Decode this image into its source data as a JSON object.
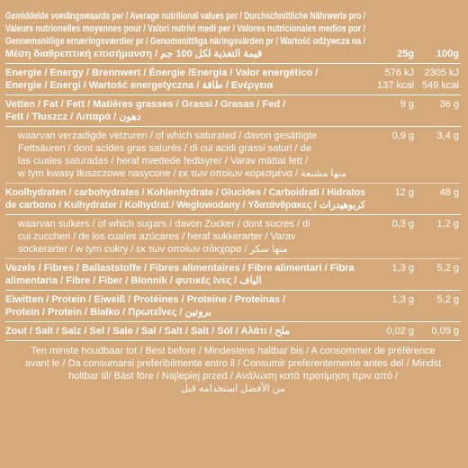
{
  "header": {
    "lines": [
      "Gemiddelde voedingswaarde per / Average nutritional values per / Durchschnittliche Nährwerte pro /",
      "Valeurs nutrionelles moyennes pour / Valori nutrivi medi per / Valores nutricionales medios por /",
      "Gennemsnitlige ernæringsværdier pr / Genomsnittliga näringsvärden pr / Wartość odżywcza na /",
      "Μέση διαθρεπτική επισήμανση / قيمة التغذية لكل 100 جم"
    ],
    "col_25": "25g",
    "col_100": "100g"
  },
  "nutrients": [
    {
      "label": [
        "Energie / Energy / Brennwert / Énergie  /Energia / Valor energético /",
        "Energie / Energi / Wartość energetyczna / طاقة / Ενέργεια"
      ],
      "per_25": [
        "576 kJ",
        "137 kcal"
      ],
      "per_100": [
        "2305 kJ",
        "549 kcal"
      ],
      "sub_rows": []
    },
    {
      "label": [
        "Vetten / Fat / Fett / Matières grasses / Grassi / Grasas / Fed /",
        "Fett / Tłuszcz / Λιπαρά / دهون"
      ],
      "per_25": [
        "9 g"
      ],
      "per_100": [
        "36 g"
      ],
      "sub_rows": [
        {
          "label": [
            "waarvan verzadigde vetzuren / of which saturated / davon gesättigte",
            "Fettsäuren / dont acides gras saturés / di cui acidi grassi saturi / de",
            "las cuales saturadas / heraf mættede fedtsyrer / Varav mättat fett /",
            "w tym kwasy tłuszczowe nasycone / εκ των οποίων κορεσμένα / منها مشبعة"
          ],
          "per_25": [
            "0,9 g"
          ],
          "per_100": [
            "3,4 g"
          ]
        }
      ]
    },
    {
      "label": [
        "Koolhydraten / carbohydrates / Kohlenhydrate / Glucides / Carboidrati / Hidratos",
        "de carbono / Kulhydrater / Kolhydrat / Weglowodany / Υδατάνθρακες / كربوهيدرات"
      ],
      "per_25": [
        "12 g"
      ],
      "per_100": [
        "48 g"
      ],
      "sub_rows": [
        {
          "label": [
            "waarvan suikers / of which sugars / davon Zucker / dont sucres / di",
            "cui zuccheri / de los cuales azúcares / heraf sukkerarter / Varav",
            "sockerarter / w tym cukry / εκ των οποίων σάκχαρα / منها سكر"
          ],
          "per_25": [
            "0,3 g"
          ],
          "per_100": [
            "1,2 g"
          ]
        }
      ]
    },
    {
      "label": [
        "Vezels / Fibres / Ballaststoffe / Fibres alimentaires / Fibre alimentari / Fibra",
        "alimentaria / Fibre / Fiber / Błonnik / φυτικές ίνες / الياف"
      ],
      "per_25": [
        "1,3 g"
      ],
      "per_100": [
        "5,2 g"
      ],
      "sub_rows": []
    },
    {
      "label": [
        "Eiwitten / Protein / Eiweiß / Protéines / Proteine / Proteinas /",
        "Protein / Protein / Białko / Πρωτεΐνες / بروتين"
      ],
      "per_25": [
        "1,3 g"
      ],
      "per_100": [
        "5,2 g"
      ],
      "sub_rows": []
    },
    {
      "label": [
        "Zout / Salt / Salz / Sel / Sale / Sal / Salt / Salt / Sól / Αλάτι / ملح"
      ],
      "per_25": [
        "0,02 g"
      ],
      "per_100": [
        "0,09 g"
      ],
      "sub_rows": []
    }
  ],
  "footer": {
    "lines": [
      "Ten minste houdbaar tot / Best before / Mindestens haltbar bis / A consommer de préférence",
      "avant le / Da consumarsi preferibilmente entro il / Consumir preferentemente antes del / Mindst",
      "holtbar til/ Bäst före  /  Najlepiej przed / Ανάλωση κατά προτίμηση πριν από /",
      "من الأفضل استخدامه قبل"
    ]
  }
}
